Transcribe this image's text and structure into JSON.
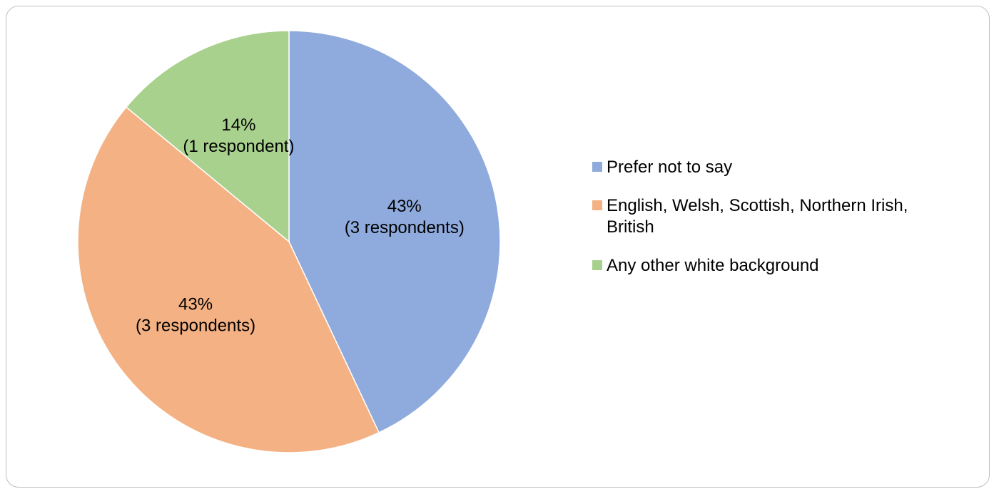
{
  "chart_data": {
    "type": "pie",
    "slices": [
      {
        "label": "Prefer not to say",
        "value": 43,
        "value_label": "43%",
        "count_label": "(3 respondents)",
        "color": "#8faadc"
      },
      {
        "label": "English, Welsh, Scottish, Northern Irish, British",
        "value": 43,
        "value_label": "43%",
        "count_label": "(3 respondents)",
        "color": "#f4b183"
      },
      {
        "label": "Any other white background",
        "value": 14,
        "value_label": "14%",
        "count_label": "(1 respondent)",
        "color": "#a9d18e"
      }
    ],
    "legend": {
      "placement": "right",
      "items": [
        {
          "label": "Prefer not to say",
          "color": "#8faadc"
        },
        {
          "label": "English, Welsh, Scottish, Northern Irish, British",
          "color": "#f4b183"
        },
        {
          "label": "Any other white background",
          "color": "#a9d18e"
        }
      ]
    }
  }
}
